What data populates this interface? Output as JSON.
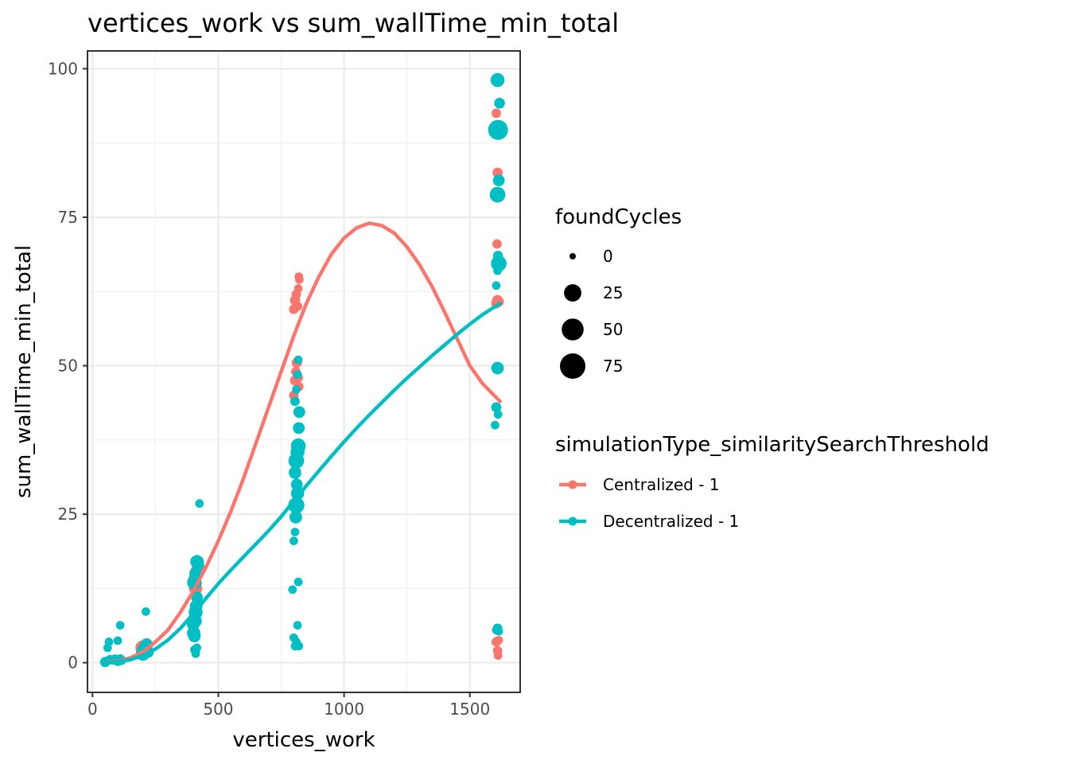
{
  "chart_data": {
    "type": "scatter",
    "title": "vertices_work  vs  sum_wallTime_min_total",
    "xlabel": "vertices_work",
    "ylabel": "sum_wallTime_min_total",
    "xlim": [
      -20,
      1700
    ],
    "ylim": [
      -5,
      103
    ],
    "x_ticks": [
      0,
      500,
      1000,
      1500
    ],
    "y_ticks": [
      0,
      25,
      50,
      75,
      100
    ],
    "grid": true,
    "legend_position": "right",
    "size_legend": {
      "title": "foundCycles",
      "entries": [
        {
          "label": "0",
          "value": 0
        },
        {
          "label": "25",
          "value": 25
        },
        {
          "label": "50",
          "value": 50
        },
        {
          "label": "75",
          "value": 75
        }
      ]
    },
    "color_legend": {
      "title": "simulationType_similaritySearchThreshold",
      "entries": [
        {
          "label": "Centralized - 1",
          "color": "#F8766D"
        },
        {
          "label": "Decentralized - 1",
          "color": "#00BFC4"
        }
      ]
    },
    "series": [
      {
        "name": "Centralized - 1",
        "color": "#F8766D",
        "points": [
          [
            200,
            2.5,
            15
          ],
          [
            210,
            1.8,
            10
          ],
          [
            215,
            3.2,
            5
          ],
          [
            405,
            14.0,
            8
          ],
          [
            410,
            12.5,
            10
          ],
          [
            415,
            15.5,
            8
          ],
          [
            420,
            17.0,
            6
          ],
          [
            425,
            16.0,
            4
          ],
          [
            800,
            45.0,
            2
          ],
          [
            805,
            47.5,
            3
          ],
          [
            808,
            49.0,
            2
          ],
          [
            812,
            50.5,
            3
          ],
          [
            818,
            48.0,
            2
          ],
          [
            820,
            46.5,
            2
          ],
          [
            800,
            59.5,
            2
          ],
          [
            805,
            61.0,
            3
          ],
          [
            810,
            62.0,
            2
          ],
          [
            815,
            60.0,
            2
          ],
          [
            818,
            63.0,
            1
          ],
          [
            820,
            65.0,
            1
          ],
          [
            822,
            64.5,
            1
          ],
          [
            1605,
            60.5,
            3
          ],
          [
            1610,
            61.0,
            4
          ],
          [
            1615,
            60.8,
            3
          ],
          [
            1608,
            70.5,
            2
          ],
          [
            1610,
            82.5,
            3
          ],
          [
            1605,
            92.5,
            2
          ],
          [
            1605,
            3.5,
            2
          ],
          [
            1610,
            2.0,
            2
          ],
          [
            1612,
            1.2,
            1
          ],
          [
            1615,
            3.8,
            1
          ]
        ],
        "trend": [
          [
            60,
            0.1
          ],
          [
            100,
            0.3
          ],
          [
            150,
            0.8
          ],
          [
            200,
            1.8
          ],
          [
            250,
            3.5
          ],
          [
            300,
            5.5
          ],
          [
            350,
            8.5
          ],
          [
            400,
            12.0
          ],
          [
            450,
            16.0
          ],
          [
            500,
            20.5
          ],
          [
            550,
            25.5
          ],
          [
            600,
            31.0
          ],
          [
            650,
            37.0
          ],
          [
            700,
            43.0
          ],
          [
            750,
            49.0
          ],
          [
            800,
            55.0
          ],
          [
            850,
            60.5
          ],
          [
            900,
            65.0
          ],
          [
            950,
            68.8
          ],
          [
            1000,
            71.5
          ],
          [
            1050,
            73.2
          ],
          [
            1100,
            74.0
          ],
          [
            1150,
            73.6
          ],
          [
            1200,
            72.3
          ],
          [
            1250,
            70.0
          ],
          [
            1300,
            67.0
          ],
          [
            1350,
            63.3
          ],
          [
            1400,
            59.0
          ],
          [
            1450,
            54.5
          ],
          [
            1500,
            50.0
          ],
          [
            1550,
            47.0
          ],
          [
            1620,
            44.0
          ]
        ]
      },
      {
        "name": "Decentralized - 1",
        "color": "#00BFC4",
        "points": [
          [
            50,
            0.1,
            3
          ],
          [
            55,
            0.3,
            1
          ],
          [
            60,
            2.5,
            1
          ],
          [
            65,
            3.5,
            1
          ],
          [
            100,
            3.7,
            1
          ],
          [
            110,
            6.3,
            1
          ],
          [
            70,
            0.5,
            2
          ],
          [
            80,
            0.4,
            1
          ],
          [
            90,
            0.6,
            2
          ],
          [
            100,
            0.3,
            3
          ],
          [
            105,
            0.5,
            2
          ],
          [
            110,
            0.7,
            1
          ],
          [
            115,
            0.4,
            2
          ],
          [
            200,
            1.5,
            12
          ],
          [
            205,
            2.0,
            14
          ],
          [
            210,
            2.5,
            10
          ],
          [
            215,
            3.0,
            8
          ],
          [
            212,
            8.6,
            1
          ],
          [
            220,
            1.8,
            6
          ],
          [
            400,
            6.5,
            8
          ],
          [
            402,
            5.0,
            10
          ],
          [
            405,
            4.5,
            8
          ],
          [
            408,
            7.0,
            10
          ],
          [
            410,
            8.5,
            12
          ],
          [
            412,
            9.5,
            8
          ],
          [
            415,
            11.0,
            6
          ],
          [
            405,
            13.5,
            14
          ],
          [
            410,
            15.0,
            8
          ],
          [
            415,
            17.0,
            10
          ],
          [
            420,
            16.5,
            6
          ],
          [
            425,
            26.8,
            1
          ],
          [
            405,
            2.2,
            1
          ],
          [
            410,
            1.5,
            1
          ],
          [
            415,
            2.5,
            1
          ],
          [
            795,
            12.3,
            1
          ],
          [
            800,
            4.2,
            1
          ],
          [
            805,
            2.8,
            1
          ],
          [
            810,
            3.5,
            1
          ],
          [
            815,
            6.3,
            1
          ],
          [
            818,
            13.6,
            1
          ],
          [
            820,
            2.8,
            1
          ],
          [
            800,
            20.5,
            1
          ],
          [
            805,
            22.0,
            1
          ],
          [
            808,
            24.5,
            8
          ],
          [
            810,
            26.5,
            20
          ],
          [
            815,
            28.5,
            10
          ],
          [
            812,
            30.0,
            6
          ],
          [
            805,
            32.0,
            8
          ],
          [
            810,
            34.0,
            18
          ],
          [
            815,
            35.5,
            12
          ],
          [
            818,
            36.5,
            15
          ],
          [
            820,
            39.5,
            6
          ],
          [
            822,
            42.2,
            6
          ],
          [
            805,
            44.0,
            2
          ],
          [
            810,
            46.0,
            1
          ],
          [
            815,
            48.5,
            1
          ],
          [
            818,
            51.0,
            1
          ],
          [
            1605,
            5.5,
            1
          ],
          [
            1610,
            5.8,
            2
          ],
          [
            1615,
            5.3,
            1
          ],
          [
            1600,
            40.0,
            1
          ],
          [
            1605,
            43.0,
            3
          ],
          [
            1612,
            41.8,
            1
          ],
          [
            1610,
            49.6,
            8
          ],
          [
            1605,
            63.5,
            1
          ],
          [
            1610,
            66.0,
            1
          ],
          [
            1615,
            67.2,
            18
          ],
          [
            1612,
            68.5,
            3
          ],
          [
            1610,
            78.8,
            18
          ],
          [
            1615,
            81.2,
            6
          ],
          [
            1612,
            89.7,
            38
          ],
          [
            1618,
            94.2,
            4
          ],
          [
            1610,
            98.1,
            12
          ]
        ],
        "trend": [
          [
            60,
            0.0
          ],
          [
            100,
            0.2
          ],
          [
            150,
            0.5
          ],
          [
            200,
            1.2
          ],
          [
            250,
            2.3
          ],
          [
            300,
            3.8
          ],
          [
            350,
            5.8
          ],
          [
            400,
            8.2
          ],
          [
            450,
            10.8
          ],
          [
            500,
            13.3
          ],
          [
            550,
            15.6
          ],
          [
            600,
            17.8
          ],
          [
            650,
            20.0
          ],
          [
            700,
            22.2
          ],
          [
            750,
            24.6
          ],
          [
            800,
            27.2
          ],
          [
            850,
            29.8
          ],
          [
            900,
            32.3
          ],
          [
            950,
            34.8
          ],
          [
            1000,
            37.2
          ],
          [
            1050,
            39.5
          ],
          [
            1100,
            41.7
          ],
          [
            1150,
            43.8
          ],
          [
            1200,
            45.9
          ],
          [
            1250,
            47.9
          ],
          [
            1300,
            49.8
          ],
          [
            1350,
            51.7
          ],
          [
            1400,
            53.5
          ],
          [
            1450,
            55.3
          ],
          [
            1500,
            57.0
          ],
          [
            1550,
            58.6
          ],
          [
            1620,
            60.5
          ]
        ]
      }
    ]
  }
}
